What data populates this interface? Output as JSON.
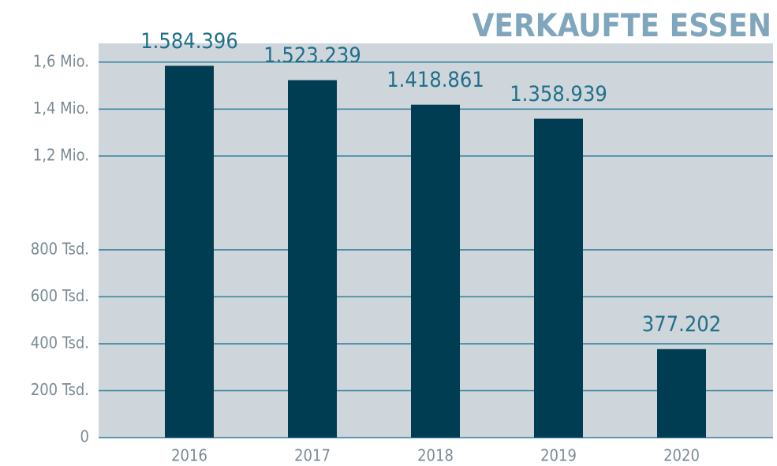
{
  "chart_data": {
    "type": "bar",
    "title": "VERKAUFTE ESSEN",
    "categories": [
      "2016",
      "2017",
      "2018",
      "2019",
      "2020"
    ],
    "values": [
      1584396,
      1523239,
      1418861,
      1358939,
      377202
    ],
    "value_labels": [
      "1.584.396",
      "1.523.239",
      "1.418.861",
      "1.358.939",
      "377.202"
    ],
    "color": "#003d52",
    "ylim": [
      0,
      1680000
    ],
    "yticks": [
      0,
      {
        "value": 200000,
        "label": "200 Tsd."
      },
      {
        "value": 400000,
        "label": "400 Tsd."
      },
      {
        "value": 600000,
        "label": "600 Tsd."
      },
      {
        "value": 800000,
        "label": "800 Tsd."
      },
      {
        "value": 1200000,
        "label": "1,2 Mio."
      },
      {
        "value": 1400000,
        "label": "1,4 Mio."
      },
      {
        "value": 1600000,
        "label": "1,6 Mio."
      }
    ],
    "grid": true
  }
}
